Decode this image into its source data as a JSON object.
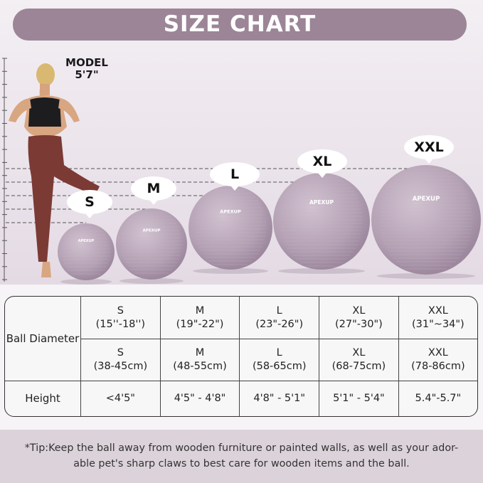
{
  "title": "SIZE CHART",
  "model": {
    "label": "MODEL",
    "height": "5'7\""
  },
  "brand_logo": "APEXUP",
  "balls": [
    {
      "size": "S"
    },
    {
      "size": "M"
    },
    {
      "size": "L"
    },
    {
      "size": "XL"
    },
    {
      "size": "XXL"
    }
  ],
  "table": {
    "row_headers": {
      "diameter": "Ball Diameter",
      "height": "Height"
    },
    "inches": [
      {
        "size": "S",
        "range": "(15''-18'')"
      },
      {
        "size": "M",
        "range": "(19\"-22\")"
      },
      {
        "size": "L",
        "range": "(23\"-26\")"
      },
      {
        "size": "XL",
        "range": "(27\"-30\")"
      },
      {
        "size": "XXL",
        "range": "(31\"~34\")"
      }
    ],
    "cm": [
      {
        "size": "S",
        "range": "(38-45cm)"
      },
      {
        "size": "M",
        "range": "(48-55cm)"
      },
      {
        "size": "L",
        "range": "(58-65cm)"
      },
      {
        "size": "XL",
        "range": "(68-75cm)"
      },
      {
        "size": "XXL",
        "range": "(78-86cm)"
      }
    ],
    "heights": [
      "<4'5\"",
      "4'5\" - 4'8\"",
      "4'8\" - 5'1\"",
      "5'1\" - 5'4\"",
      "5.4\"-5.7\""
    ]
  },
  "tip": {
    "line1": "*Tip:Keep the ball away from wooden furniture or painted walls, as well as your ador-",
    "line2": "able pet's sharp claws to best care for wooden items and the ball."
  },
  "colors": {
    "accent": "#9c8597",
    "ball": "#b7a3b6",
    "tip_bg": "#dcd3da"
  }
}
